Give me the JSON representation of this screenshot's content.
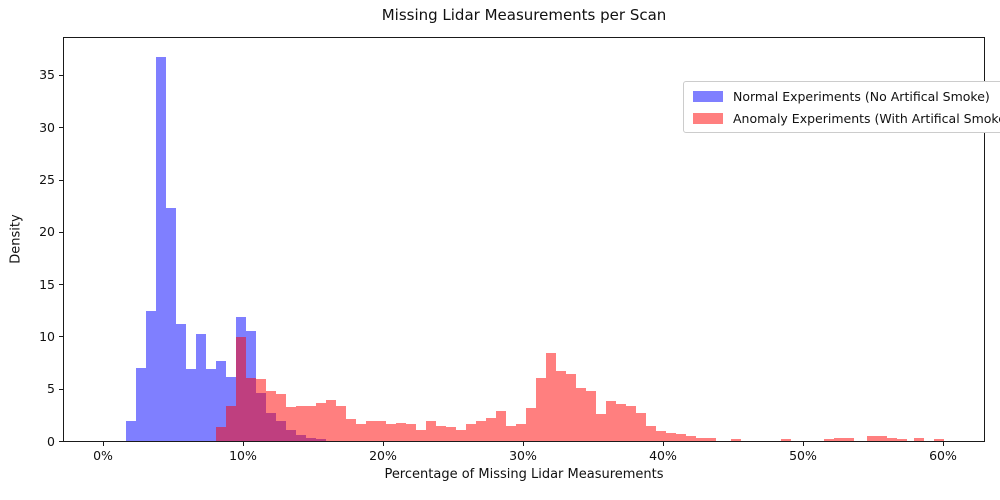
{
  "title": "Missing Lidar Measurements per Scan",
  "legend": {
    "items": [
      {
        "label": "Normal Experiments (No Artifical Smoke)",
        "color": "rgba(0,0,255,0.5)"
      },
      {
        "label": "Anomaly Experiments (With Artifical Smoke)",
        "color": "rgba(255,0,0,0.5)"
      }
    ]
  },
  "colors": {
    "normal_fill": "#7f7fff",
    "anomaly_fill": "#ff7f7f",
    "overlap_blend": "#bf3f7f",
    "axis": "#1a1a1a",
    "legend_border": "#cccccc"
  },
  "chart_data": {
    "type": "bar",
    "subtype": "overlapping-density-histogram",
    "title": "Missing Lidar Measurements per Scan",
    "xlabel": "Percentage of Missing Lidar Measurements",
    "ylabel": "Density",
    "x_tick_values": [
      0,
      10,
      20,
      30,
      40,
      50,
      60
    ],
    "x_tick_labels": [
      "0%",
      "10%",
      "20%",
      "30%",
      "40%",
      "50%",
      "60%"
    ],
    "y_tick_values": [
      0,
      5,
      10,
      15,
      20,
      25,
      30,
      35
    ],
    "y_tick_labels": [
      "0",
      "5",
      "10",
      "15",
      "20",
      "25",
      "30",
      "35"
    ],
    "xlim_pct": [
      -2.86,
      63.0
    ],
    "ylim": [
      0,
      38.72
    ],
    "grid": false,
    "legend_position": "upper right",
    "bin_width_pct": 0.714,
    "series": [
      {
        "name": "Normal Experiments (No Artifical Smoke)",
        "color": "rgba(0,0,255,0.5)",
        "bars": [
          [
            1.57,
            1.9
          ],
          [
            2.29,
            7.0
          ],
          [
            3.0,
            12.4
          ],
          [
            3.71,
            36.75
          ],
          [
            4.43,
            22.3
          ],
          [
            5.14,
            11.2
          ],
          [
            5.86,
            6.85
          ],
          [
            6.57,
            10.2
          ],
          [
            7.29,
            6.9
          ],
          [
            8.0,
            7.65
          ],
          [
            8.71,
            6.1
          ],
          [
            9.43,
            11.9
          ],
          [
            10.14,
            10.5
          ],
          [
            10.86,
            4.6
          ],
          [
            11.57,
            2.7
          ],
          [
            12.29,
            1.9
          ],
          [
            13.0,
            1.1
          ],
          [
            13.71,
            0.6
          ],
          [
            14.43,
            0.3
          ],
          [
            15.14,
            0.15
          ]
        ]
      },
      {
        "name": "Anomaly Experiments (With Artifical Smoke)",
        "color": "rgba(255,0,0,0.5)",
        "bars": [
          [
            8.0,
            1.3
          ],
          [
            8.71,
            3.35
          ],
          [
            9.43,
            9.9
          ],
          [
            10.14,
            6.05
          ],
          [
            10.86,
            5.9
          ],
          [
            11.57,
            4.8
          ],
          [
            12.29,
            4.5
          ],
          [
            13.0,
            3.3
          ],
          [
            13.71,
            3.35
          ],
          [
            14.43,
            3.35
          ],
          [
            15.14,
            3.67
          ],
          [
            15.86,
            3.9
          ],
          [
            16.57,
            3.35
          ],
          [
            17.29,
            2.1
          ],
          [
            18.0,
            1.6
          ],
          [
            18.71,
            1.9
          ],
          [
            19.43,
            1.9
          ],
          [
            20.14,
            1.6
          ],
          [
            20.86,
            1.75
          ],
          [
            21.57,
            1.6
          ],
          [
            22.29,
            1.1
          ],
          [
            23.0,
            1.9
          ],
          [
            23.71,
            1.45
          ],
          [
            24.43,
            1.3
          ],
          [
            25.14,
            1.1
          ],
          [
            25.86,
            1.6
          ],
          [
            26.57,
            1.9
          ],
          [
            27.29,
            2.2
          ],
          [
            28.0,
            2.9
          ],
          [
            28.71,
            1.45
          ],
          [
            29.43,
            1.6
          ],
          [
            30.14,
            3.2
          ],
          [
            30.86,
            6.05
          ],
          [
            31.57,
            8.45
          ],
          [
            32.29,
            6.7
          ],
          [
            33.0,
            6.4
          ],
          [
            33.71,
            5.1
          ],
          [
            34.43,
            4.8
          ],
          [
            35.14,
            2.55
          ],
          [
            35.86,
            3.8
          ],
          [
            36.57,
            3.5
          ],
          [
            37.29,
            3.35
          ],
          [
            38.0,
            2.7
          ],
          [
            38.71,
            1.45
          ],
          [
            39.43,
            0.95
          ],
          [
            40.14,
            0.8
          ],
          [
            40.86,
            0.65
          ],
          [
            41.57,
            0.5
          ],
          [
            42.29,
            0.3
          ],
          [
            43.0,
            0.25
          ],
          [
            44.79,
            0.15
          ],
          [
            48.36,
            0.15
          ],
          [
            51.43,
            0.15
          ],
          [
            52.14,
            0.25
          ],
          [
            52.86,
            0.25
          ],
          [
            54.5,
            0.45
          ],
          [
            55.21,
            0.5
          ],
          [
            55.93,
            0.25
          ],
          [
            56.64,
            0.2
          ],
          [
            57.86,
            0.25
          ],
          [
            59.29,
            0.2
          ]
        ]
      }
    ]
  }
}
